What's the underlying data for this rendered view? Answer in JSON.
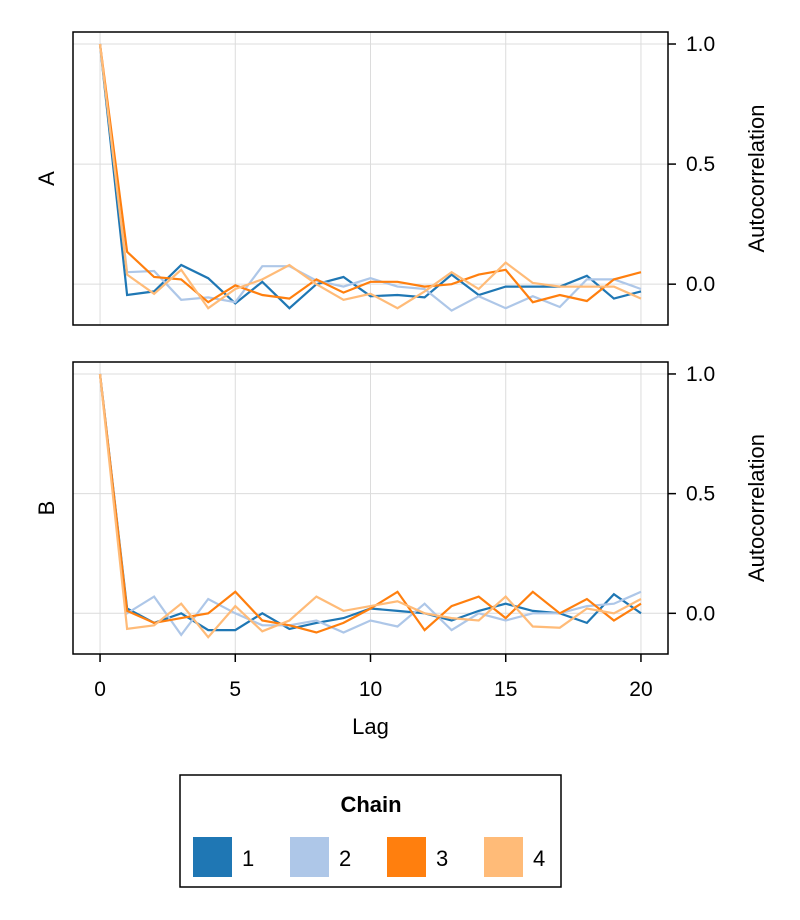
{
  "chart_data": [
    {
      "type": "line",
      "panel_label": "A",
      "ylabel": "Autocorrelation",
      "xlabel": "",
      "xlim": [
        -1,
        21
      ],
      "ylim": [
        -0.17,
        1.05
      ],
      "yticks": [
        0.0,
        0.5,
        1.0
      ],
      "ytick_labels": [
        "0.0",
        "0.5",
        "1.0"
      ],
      "xticks": [
        0,
        5,
        10,
        15,
        20
      ],
      "grid": true,
      "x": [
        0,
        1,
        2,
        3,
        4,
        5,
        6,
        7,
        8,
        9,
        10,
        11,
        12,
        13,
        14,
        15,
        16,
        17,
        18,
        19,
        20
      ],
      "series": [
        {
          "name": "1",
          "values": [
            1.0,
            -0.045,
            -0.03,
            0.08,
            0.025,
            -0.08,
            0.01,
            -0.1,
            0.0,
            0.03,
            -0.05,
            -0.045,
            -0.055,
            0.04,
            -0.045,
            -0.01,
            -0.01,
            -0.01,
            0.035,
            -0.06,
            -0.03
          ]
        },
        {
          "name": "2",
          "values": [
            1.0,
            0.05,
            0.055,
            -0.065,
            -0.055,
            -0.075,
            0.075,
            0.075,
            0.015,
            -0.01,
            0.025,
            -0.01,
            -0.02,
            -0.11,
            -0.05,
            -0.1,
            -0.05,
            -0.095,
            0.02,
            0.02,
            -0.02
          ]
        },
        {
          "name": "3",
          "values": [
            1.0,
            0.135,
            0.03,
            0.02,
            -0.075,
            -0.005,
            -0.045,
            -0.06,
            0.02,
            -0.035,
            0.01,
            0.01,
            -0.01,
            0.0,
            0.04,
            0.06,
            -0.075,
            -0.045,
            -0.07,
            0.02,
            0.05
          ]
        },
        {
          "name": "4",
          "values": [
            1.0,
            0.04,
            -0.04,
            0.06,
            -0.1,
            -0.02,
            0.02,
            0.08,
            0.0,
            -0.065,
            -0.04,
            -0.1,
            -0.03,
            0.05,
            -0.02,
            0.09,
            0.005,
            -0.01,
            -0.01,
            -0.01,
            -0.06
          ]
        }
      ]
    },
    {
      "type": "line",
      "panel_label": "B",
      "ylabel": "Autocorrelation",
      "xlabel": "Lag",
      "xlim": [
        -1,
        21
      ],
      "ylim": [
        -0.17,
        1.05
      ],
      "yticks": [
        0.0,
        0.5,
        1.0
      ],
      "ytick_labels": [
        "0.0",
        "0.5",
        "1.0"
      ],
      "xticks": [
        0,
        5,
        10,
        15,
        20
      ],
      "xtick_labels": [
        "0",
        "5",
        "10",
        "15",
        "20"
      ],
      "grid": true,
      "x": [
        0,
        1,
        2,
        3,
        4,
        5,
        6,
        7,
        8,
        9,
        10,
        11,
        12,
        13,
        14,
        15,
        16,
        17,
        18,
        19,
        20
      ],
      "series": [
        {
          "name": "1",
          "values": [
            1.0,
            0.02,
            -0.04,
            0.0,
            -0.07,
            -0.07,
            0.0,
            -0.065,
            -0.04,
            -0.02,
            0.02,
            0.01,
            0.0,
            -0.03,
            0.01,
            0.04,
            0.01,
            0.0,
            -0.04,
            0.08,
            0.0
          ]
        },
        {
          "name": "2",
          "values": [
            1.0,
            0.0,
            0.07,
            -0.09,
            0.06,
            0.0,
            -0.05,
            -0.05,
            -0.03,
            -0.08,
            -0.03,
            -0.055,
            0.04,
            -0.07,
            0.0,
            -0.03,
            0.0,
            0.0,
            0.03,
            0.04,
            0.09
          ]
        },
        {
          "name": "3",
          "values": [
            1.0,
            0.01,
            -0.04,
            -0.02,
            0.0,
            0.09,
            -0.03,
            -0.05,
            -0.08,
            -0.04,
            0.02,
            0.09,
            -0.07,
            0.03,
            0.07,
            -0.02,
            0.09,
            0.0,
            0.06,
            -0.03,
            0.04
          ]
        },
        {
          "name": "4",
          "values": [
            1.0,
            -0.065,
            -0.05,
            0.04,
            -0.1,
            0.03,
            -0.075,
            -0.03,
            0.07,
            0.01,
            0.03,
            0.05,
            0.0,
            -0.02,
            -0.03,
            0.07,
            -0.055,
            -0.06,
            0.02,
            0.0,
            0.06
          ]
        }
      ]
    }
  ],
  "legend": {
    "title": "Chain",
    "placement": "bottom-center",
    "items": [
      {
        "label": "1",
        "color": "#1f77b4"
      },
      {
        "label": "2",
        "color": "#aec7e8"
      },
      {
        "label": "3",
        "color": "#ff7f0e"
      },
      {
        "label": "4",
        "color": "#ffbb78"
      }
    ]
  },
  "colors": {
    "grid": "#dcdcdc",
    "frame": "#000000"
  }
}
